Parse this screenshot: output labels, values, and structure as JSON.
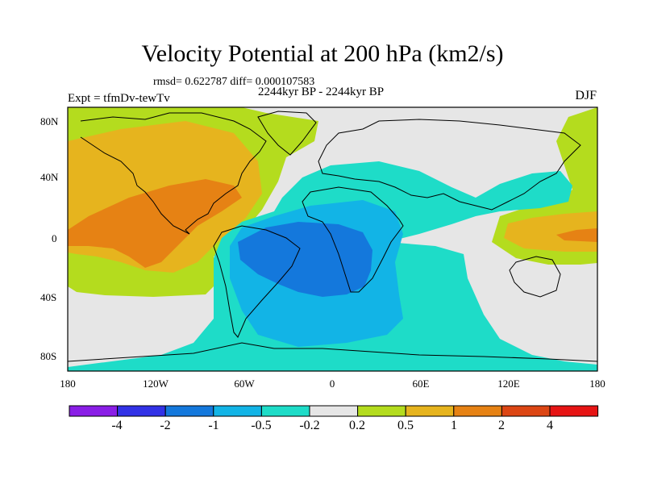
{
  "title": "Velocity Potential at 200 hPa (km2/s)",
  "stats": "rmsd= 0.622787 diff= 0.000107583",
  "subtitle": "2244kyr BP - 2244kyr BP",
  "experiment": "Expt = tfmDv-tewTv",
  "season": "DJF",
  "y_ticks": [
    "80N",
    "40N",
    "0",
    "40S",
    "80S"
  ],
  "x_ticks": [
    "180",
    "120W",
    "60W",
    "0",
    "60E",
    "120E",
    "180"
  ],
  "colorbar": {
    "labels": [
      "-4",
      "-2",
      "-1",
      "-0.5",
      "-0.2",
      "0.2",
      "0.5",
      "1",
      "2",
      "4"
    ],
    "colors": [
      "#8a1ee6",
      "#3232e6",
      "#1478dc",
      "#12b4e6",
      "#1edcc8",
      "#e6e6e6",
      "#b4dc1e",
      "#e6b41e",
      "#e68214",
      "#dc4614",
      "#e61414"
    ]
  },
  "legend_classes": {
    "neg_0p2": "#1edcc8",
    "neg_0p5": "#12b4e6",
    "neg_1": "#1478dc",
    "near_zero": "#e6e6e6",
    "pos_0p2": "#b4dc1e",
    "pos_0p5": "#e6b41e",
    "pos_1": "#e68214"
  }
}
